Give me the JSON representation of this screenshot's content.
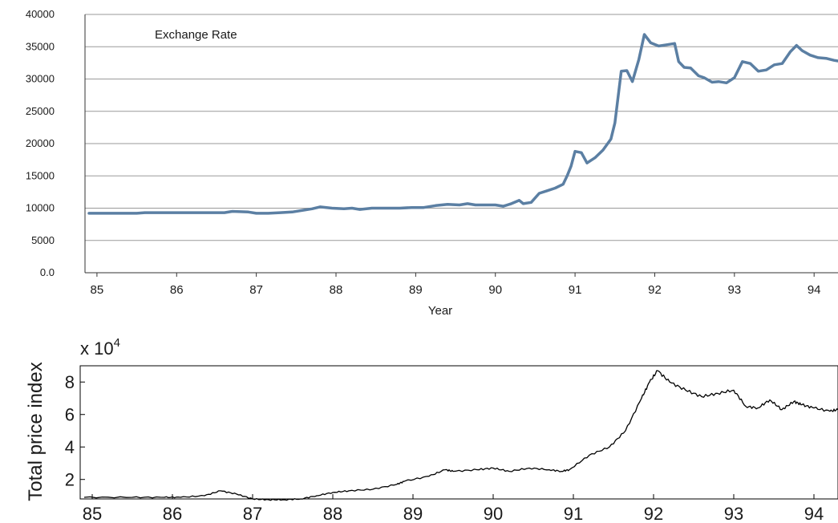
{
  "chart_data": [
    {
      "type": "line",
      "title": "Exchange Rate",
      "xlabel": "Year",
      "ylabel": "",
      "xlim": [
        84.85,
        94.3
      ],
      "ylim": [
        0,
        40000
      ],
      "yticks": [
        "0.0",
        "5000",
        "10000",
        "15000",
        "20000",
        "25000",
        "30000",
        "35000",
        "40000"
      ],
      "xticks": [
        "85",
        "86",
        "87",
        "88",
        "89",
        "90",
        "91",
        "92",
        "93",
        "94"
      ],
      "grid": "horizontal",
      "color": "#5b7fa3",
      "series": [
        {
          "x": [
            84.9,
            85.5,
            85.6,
            86.0,
            86.5,
            86.6,
            86.7,
            86.9,
            87.0,
            87.15,
            87.3,
            87.45,
            87.6,
            87.7,
            87.8,
            87.95,
            88.1,
            88.2,
            88.3,
            88.45,
            88.6,
            88.8,
            88.95,
            89.1,
            89.25,
            89.4,
            89.55,
            89.65,
            89.75,
            89.9,
            90.0,
            90.1,
            90.2,
            90.3,
            90.35,
            90.45,
            90.55,
            90.65,
            90.75,
            90.85,
            90.9,
            90.95,
            91.0,
            91.08,
            91.15,
            91.25,
            91.35,
            91.45,
            91.5,
            91.58,
            91.65,
            91.72,
            91.8,
            91.87,
            91.95,
            92.05,
            92.15,
            92.25,
            92.3,
            92.37,
            92.45,
            92.55,
            92.62,
            92.72,
            92.8,
            92.9,
            93.0,
            93.1,
            93.2,
            93.3,
            93.4,
            93.5,
            93.6,
            93.7,
            93.78,
            93.85,
            93.95,
            94.05,
            94.15,
            94.25,
            94.3
          ],
          "y": [
            9200,
            9200,
            9300,
            9300,
            9300,
            9300,
            9500,
            9400,
            9200,
            9200,
            9300,
            9400,
            9700,
            9900,
            10200,
            10000,
            9900,
            10000,
            9800,
            10000,
            10000,
            10000,
            10100,
            10100,
            10400,
            10600,
            10500,
            10700,
            10500,
            10500,
            10500,
            10300,
            10700,
            11200,
            10700,
            10900,
            12300,
            12700,
            13100,
            13700,
            15000,
            16500,
            18800,
            18600,
            17000,
            17800,
            19000,
            20700,
            23200,
            31200,
            31300,
            29600,
            33000,
            36900,
            35600,
            35100,
            35300,
            35500,
            32700,
            31800,
            31700,
            30500,
            30200,
            29500,
            29600,
            29400,
            30200,
            32700,
            32400,
            31200,
            31400,
            32200,
            32400,
            34200,
            35200,
            34400,
            33700,
            33300,
            33200,
            32900,
            32800
          ]
        }
      ]
    },
    {
      "type": "line",
      "title": "",
      "xlabel": "",
      "ylabel": "Total price index",
      "y_multiplier_label": "x 10",
      "y_multiplier_exp": "4",
      "xlim": [
        84.85,
        94.3
      ],
      "ylim": [
        0.8,
        9
      ],
      "yticks": [
        "2",
        "4",
        "6",
        "8"
      ],
      "xticks": [
        "85",
        "86",
        "87",
        "88",
        "89",
        "90",
        "91",
        "92",
        "93",
        "94"
      ],
      "grid": "none",
      "color": "#000000",
      "series": [
        {
          "x": [
            84.9,
            85.5,
            85.9,
            86.1,
            86.4,
            86.6,
            86.8,
            87.0,
            87.2,
            87.4,
            87.6,
            87.8,
            88.0,
            88.2,
            88.5,
            88.8,
            88.9,
            89.2,
            89.4,
            89.5,
            89.8,
            90.0,
            90.2,
            90.45,
            90.7,
            90.85,
            90.95,
            91.2,
            91.45,
            91.65,
            91.85,
            91.95,
            92.05,
            92.2,
            92.4,
            92.6,
            92.8,
            93.0,
            93.15,
            93.3,
            93.45,
            93.6,
            93.75,
            93.85,
            94.0,
            94.2,
            94.3
          ],
          "y": [
            0.9,
            0.9,
            0.9,
            0.9,
            1.0,
            1.3,
            1.1,
            0.8,
            0.75,
            0.75,
            0.8,
            1.0,
            1.2,
            1.3,
            1.4,
            1.7,
            1.9,
            2.2,
            2.6,
            2.5,
            2.6,
            2.7,
            2.5,
            2.7,
            2.6,
            2.5,
            2.6,
            3.5,
            4.0,
            5.0,
            7.0,
            8.0,
            8.7,
            8.0,
            7.5,
            7.1,
            7.3,
            7.5,
            6.5,
            6.4,
            6.9,
            6.3,
            6.8,
            6.6,
            6.4,
            6.2,
            6.3
          ]
        }
      ]
    }
  ]
}
